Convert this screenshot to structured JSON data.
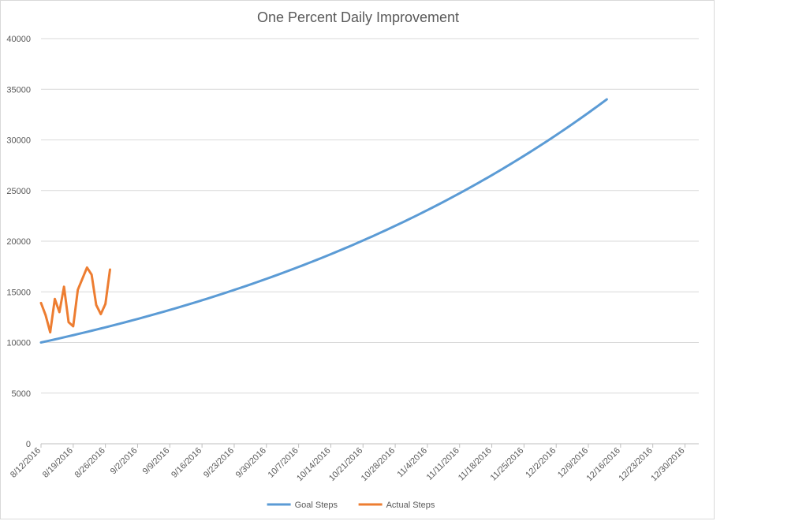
{
  "chart_data": {
    "type": "line",
    "title": "One Percent Daily Improvement",
    "xlabel": "",
    "ylabel": "",
    "x_start": "8/12/2016",
    "x_end": "1/2/2017",
    "ylim": [
      0,
      40000
    ],
    "y_ticks": [
      "0",
      "5000",
      "10000",
      "15000",
      "20000",
      "25000",
      "30000",
      "35000",
      "40000"
    ],
    "y_tick_values": [
      0,
      5000,
      10000,
      15000,
      20000,
      25000,
      30000,
      35000,
      40000
    ],
    "x_tick_dates": [
      "8/12/2016",
      "8/19/2016",
      "8/26/2016",
      "9/2/2016",
      "9/9/2016",
      "9/16/2016",
      "9/23/2016",
      "9/30/2016",
      "10/7/2016",
      "10/14/2016",
      "10/21/2016",
      "10/28/2016",
      "11/4/2016",
      "11/11/2016",
      "11/18/2016",
      "11/25/2016",
      "12/2/2016",
      "12/9/2016",
      "12/16/2016",
      "12/23/2016",
      "12/30/2016"
    ],
    "grid": true,
    "legend_position": "bottom",
    "series": [
      {
        "name": "Goal Steps",
        "color": "#5b9bd5",
        "start_date": "8/12/2016",
        "values": [
          10000,
          10100,
          10201,
          10303,
          10406,
          10510,
          10615,
          10721,
          10829,
          10937,
          11046,
          11157,
          11268,
          11381,
          11495,
          11610,
          11726,
          11843,
          11961,
          12081,
          12202,
          12324,
          12447,
          12572,
          12697,
          12824,
          12953,
          13082,
          13213,
          13345,
          13478,
          13613,
          13749,
          13887,
          14026,
          14166,
          14308,
          14451,
          14595,
          14741,
          14889,
          15038,
          15188,
          15340,
          15493,
          15648,
          15805,
          15963,
          16122,
          16283,
          16446,
          16611,
          16777,
          16945,
          17114,
          17285,
          17458,
          17633,
          17809,
          17987,
          18167,
          18349,
          18532,
          18717,
          18905,
          19094,
          19285,
          19477,
          19672,
          19869,
          20068,
          20268,
          20471,
          20676,
          20882,
          21091,
          21302,
          21515,
          21730,
          21948,
          22167,
          22389,
          22613,
          22839,
          23067,
          23298,
          23531,
          23766,
          24004,
          24244,
          24486,
          24731,
          24979,
          25228,
          25481,
          25735,
          25993,
          26253,
          26515,
          26780,
          27048,
          27319,
          27592,
          27868,
          28146,
          28428,
          28712,
          28999,
          29289,
          29582,
          29878,
          30177,
          30479,
          30783,
          31091,
          31402,
          31716,
          32033,
          32354,
          32677,
          33004,
          33334,
          33667,
          34004
        ]
      },
      {
        "name": "Actual Steps",
        "color": "#ed7d31",
        "start_date": "8/12/2016",
        "values": [
          13900,
          12700,
          11000,
          14300,
          13000,
          15500,
          12000,
          11600,
          15200,
          16300,
          17400,
          16700,
          13700,
          12800,
          13800,
          17200
        ]
      }
    ]
  }
}
